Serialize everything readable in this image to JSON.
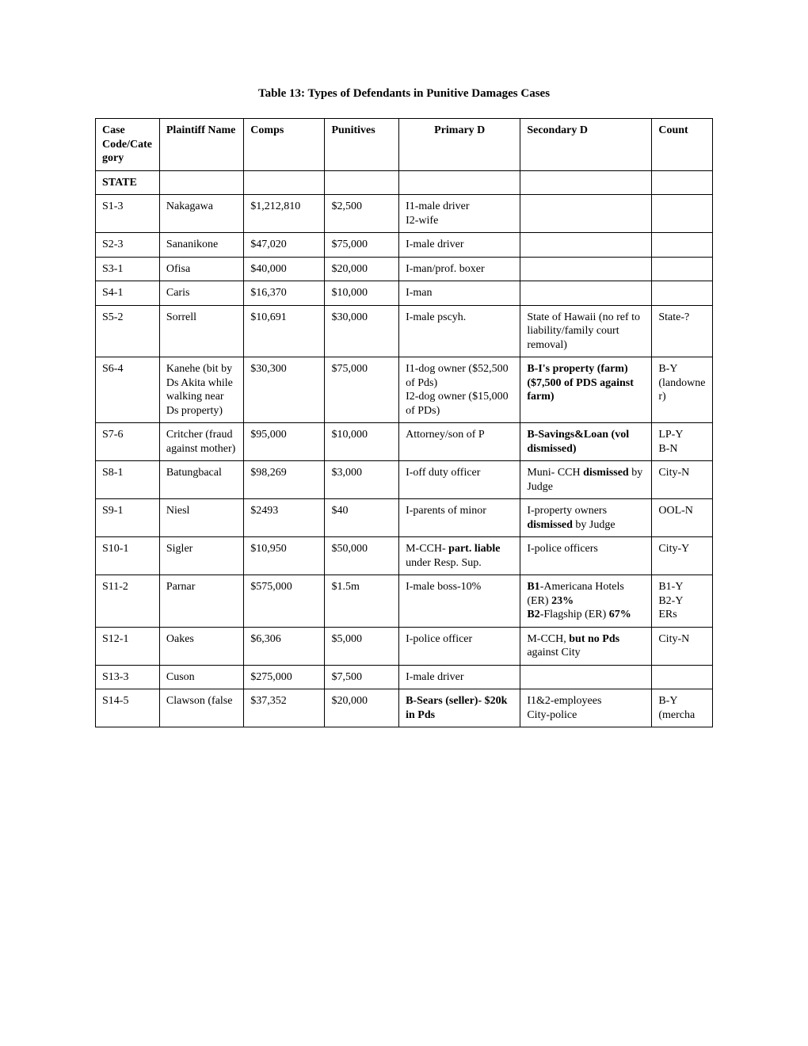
{
  "title": "Table 13: Types of Defendants in Punitive Damages Cases",
  "headers": {
    "c1": "Case Code/Category",
    "c2": "Plaintiff Name",
    "c3": "Comps",
    "c4": "Punitives",
    "c5": "Primary D",
    "c6": "Secondary D",
    "c7": "Count"
  },
  "section_label": "STATE",
  "rows": [
    {
      "code": "S1-3",
      "plaintiff": "Nakagawa",
      "comps": "$1,212,810",
      "punitives": "$2,500",
      "primary": [
        {
          "t": "I1-male driver"
        },
        {
          "br": true
        },
        {
          "t": "I2-wife"
        }
      ],
      "secondary": [],
      "count": []
    },
    {
      "code": "S2-3",
      "plaintiff": "Sananikone",
      "comps": "$47,020",
      "punitives": "$75,000",
      "primary": [
        {
          "t": "I-male driver"
        }
      ],
      "secondary": [],
      "count": []
    },
    {
      "code": "S3-1",
      "plaintiff": "Ofisa",
      "comps": "$40,000",
      "punitives": "$20,000",
      "primary": [
        {
          "t": "I-man/prof. boxer"
        }
      ],
      "secondary": [],
      "count": []
    },
    {
      "code": "S4-1",
      "plaintiff": "Caris",
      "comps": "$16,370",
      "punitives": "$10,000",
      "primary": [
        {
          "t": "I-man"
        }
      ],
      "secondary": [],
      "count": []
    },
    {
      "code": "S5-2",
      "plaintiff": "Sorrell",
      "comps": "$10,691",
      "punitives": "$30,000",
      "primary": [
        {
          "t": "I-male pscyh."
        }
      ],
      "secondary": [
        {
          "t": "State of Hawaii (no ref to liability/family court removal)"
        }
      ],
      "count": [
        {
          "t": "State-?"
        }
      ]
    },
    {
      "code": "S6-4",
      "plaintiff": "Kanehe (bit by Ds Akita while walking near Ds property)",
      "comps": "$30,300",
      "punitives": "$75,000",
      "primary": [
        {
          "t": "I1-dog owner ($52,500 of Pds)"
        },
        {
          "br": true
        },
        {
          "t": "I2-dog owner ($15,000 of PDs)"
        }
      ],
      "secondary": [
        {
          "t": "B-I's property (farm) ($7,500 of PDS against farm)",
          "b": true
        }
      ],
      "count": [
        {
          "t": "B-Y (landowner)"
        }
      ]
    },
    {
      "code": "S7-6",
      "plaintiff": "Critcher (fraud against mother)",
      "comps": "$95,000",
      "punitives": "$10,000",
      "primary": [
        {
          "t": "Attorney/son of P"
        }
      ],
      "secondary": [
        {
          "t": "B-Savings&Loan (vol dismissed)",
          "b": true
        }
      ],
      "count": [
        {
          "t": "LP-Y"
        },
        {
          "br": true
        },
        {
          "t": "B-N"
        }
      ]
    },
    {
      "code": "S8-1",
      "plaintiff": "Batungbacal",
      "comps": "$98,269",
      "punitives": "$3,000",
      "primary": [
        {
          "t": "I-off duty officer"
        }
      ],
      "secondary": [
        {
          "t": "Muni- CCH "
        },
        {
          "t": "dismissed",
          "b": true
        },
        {
          "t": " by Judge"
        }
      ],
      "count": [
        {
          "t": "City-N"
        }
      ]
    },
    {
      "code": "S9-1",
      "plaintiff": "Niesl",
      "comps": "$2493",
      "punitives": "$40",
      "primary": [
        {
          "t": "I-parents of minor"
        }
      ],
      "secondary": [
        {
          "t": "I-property owners "
        },
        {
          "t": "dismissed",
          "b": true
        },
        {
          "t": " by Judge"
        }
      ],
      "count": [
        {
          "t": "OOL-N"
        }
      ]
    },
    {
      "code": "S10-1",
      "plaintiff": "Sigler",
      "comps": "$10,950",
      "punitives": "$50,000",
      "primary": [
        {
          "t": "M-CCH- "
        },
        {
          "t": "part. liable",
          "b": true
        },
        {
          "t": " under Resp. Sup."
        }
      ],
      "secondary": [
        {
          "t": "I-police officers"
        }
      ],
      "count": [
        {
          "t": "City-Y"
        }
      ]
    },
    {
      "code": "S11-2",
      "plaintiff": "Parnar",
      "comps": "$575,000",
      "punitives": "$1.5m",
      "primary": [
        {
          "t": "I-male boss-10%"
        }
      ],
      "secondary": [
        {
          "t": "B1",
          "b": true
        },
        {
          "t": "-Americana Hotels (ER) "
        },
        {
          "t": "23%",
          "b": true
        },
        {
          "br": true
        },
        {
          "t": "B2",
          "b": true
        },
        {
          "t": "-Flagship (ER) "
        },
        {
          "t": "67%",
          "b": true
        }
      ],
      "count": [
        {
          "t": "B1-Y"
        },
        {
          "br": true
        },
        {
          "t": "B2-Y"
        },
        {
          "br": true
        },
        {
          "t": "ERs"
        }
      ]
    },
    {
      "code": "S12-1",
      "plaintiff": "Oakes",
      "comps": "$6,306",
      "punitives": "$5,000",
      "primary": [
        {
          "t": "I-police officer"
        }
      ],
      "secondary": [
        {
          "t": "M-CCH, "
        },
        {
          "t": "but no Pds",
          "b": true
        },
        {
          "t": " against City"
        }
      ],
      "count": [
        {
          "t": "City-N"
        }
      ]
    },
    {
      "code": "S13-3",
      "plaintiff": "Cuson",
      "comps": "$275,000",
      "punitives": "$7,500",
      "primary": [
        {
          "t": "I-male driver"
        }
      ],
      "secondary": [],
      "count": []
    },
    {
      "code": "S14-5",
      "plaintiff": "Clawson (false",
      "comps": "$37,352",
      "punitives": "$20,000",
      "primary": [
        {
          "t": "B-Sears (seller)- $20k in Pds",
          "b": true
        }
      ],
      "secondary": [
        {
          "t": "I1&2-employees"
        },
        {
          "br": true
        },
        {
          "t": "City-police"
        }
      ],
      "count": [
        {
          "t": "B-Y (mercha"
        }
      ]
    }
  ]
}
